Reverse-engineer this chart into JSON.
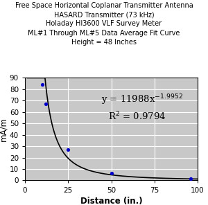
{
  "title_lines": [
    "Free Space Horizontal Coplanar Transmitter Antenna",
    "HASARD Transmitter (73 kHz)",
    "Holaday HI3600 VLF Survey Meter",
    "ML#1 Through ML#5 Data Average Fit Curve",
    "Height = 48 Inches"
  ],
  "xlabel": "Distance (in.)",
  "ylabel": "mA/m",
  "xlim": [
    0,
    100
  ],
  "ylim": [
    0,
    90
  ],
  "xticks": [
    0,
    25,
    50,
    75,
    100
  ],
  "yticks": [
    0,
    10,
    20,
    30,
    40,
    50,
    60,
    70,
    80,
    90
  ],
  "data_points_x": [
    10,
    12,
    25,
    50,
    96
  ],
  "data_points_y": [
    84,
    67,
    27,
    6.2,
    1.3
  ],
  "fit_coeff": 11988,
  "fit_exp": -1.9952,
  "r2_value": "0.9794",
  "curve_color": "#000000",
  "point_color": "#0000cc",
  "bg_color": "#c8c8c8",
  "title_fontsize": 7.0,
  "axis_label_fontsize": 8.5,
  "tick_fontsize": 7.5,
  "annotation_fontsize": 9.5
}
